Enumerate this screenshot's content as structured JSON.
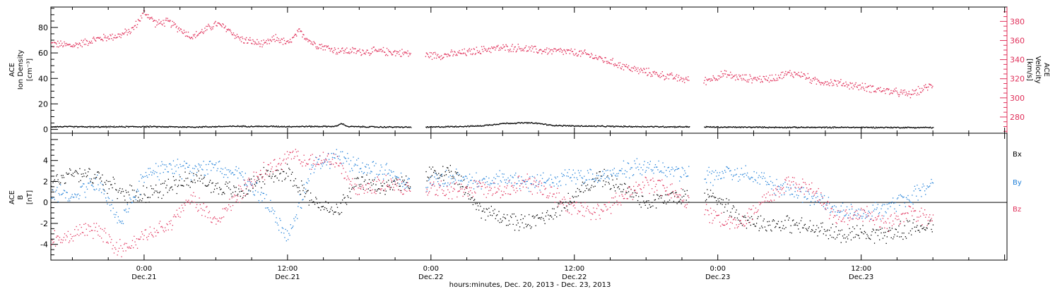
{
  "colors": {
    "black": "#000000",
    "pink": "#e0305a",
    "blue": "#1e7fd8"
  },
  "xaxis": {
    "title": "hours:minutes, Dec. 20, 2013 - Dec. 23, 2013",
    "ticks": [
      {
        "time": "0:00",
        "date": "Dec.21",
        "t": 24
      },
      {
        "time": "12:00",
        "date": "Dec.21",
        "t": 36
      },
      {
        "time": "0:00",
        "date": "Dec.22",
        "t": 48
      },
      {
        "time": "12:00",
        "date": "Dec.22",
        "t": 60
      },
      {
        "time": "0:00",
        "date": "Dec.23",
        "t": 72
      },
      {
        "time": "12:00",
        "date": "Dec.23",
        "t": 84
      }
    ],
    "xlim_hours": [
      16.2,
      96.2
    ]
  },
  "panel1": {
    "left_label": [
      "ACE",
      "Ion Density",
      "[cm⁻³]"
    ],
    "right_label": [
      "ACE",
      "Velocity",
      "[km/s]"
    ],
    "left_ticks": [
      "0",
      "20",
      "40",
      "60",
      "80"
    ],
    "right_ticks": [
      "280",
      "300",
      "320",
      "340",
      "360",
      "380"
    ]
  },
  "panel2": {
    "left_label": [
      "ACE",
      "B",
      "[nT]"
    ],
    "left_ticks": [
      "-4",
      "-2",
      "0",
      "2",
      "4"
    ],
    "legend": [
      {
        "label": "Bx",
        "color": "#000000"
      },
      {
        "label": "By",
        "color": "#1e7fd8"
      },
      {
        "label": "Bz",
        "color": "#e0305a"
      }
    ]
  },
  "chart_data": [
    {
      "type": "scatter",
      "title": "",
      "xlabel": "hours:minutes, Dec. 20, 2013 - Dec. 23, 2013",
      "x_unit": "hours since 2013-12-20 00:00",
      "series": [
        {
          "name": "Ion Density",
          "axis": "left",
          "ylabel": "Ion Density [cm-3]",
          "ylim": [
            -3,
            96
          ],
          "color": "#000000",
          "x": [
            16.2,
            20,
            24,
            28,
            32,
            36,
            40,
            40.5,
            41,
            42,
            44,
            47.5,
            49,
            52,
            54,
            56,
            57,
            58,
            60,
            64,
            68,
            70.8,
            72,
            76,
            80,
            84,
            88,
            90
          ],
          "y": [
            2.5,
            2.3,
            2.5,
            2.2,
            2.8,
            2.6,
            2.7,
            5,
            2.6,
            2.4,
            2.2,
            2.0,
            2.4,
            3.0,
            5.0,
            5.5,
            5.0,
            3.6,
            3.0,
            2.6,
            2.4,
            2.3,
            2.1,
            2.0,
            1.9,
            1.9,
            1.8,
            1.8
          ]
        },
        {
          "name": "Velocity",
          "axis": "right",
          "ylabel": "Velocity [km/s]",
          "ylim": [
            263,
            395
          ],
          "color": "#e0305a",
          "x": [
            16.2,
            18,
            20,
            22,
            23,
            24,
            25,
            26,
            28,
            30,
            31,
            32,
            34,
            35,
            36,
            37,
            38,
            40,
            42,
            44,
            46,
            47.5,
            49,
            51,
            53,
            55,
            57,
            59,
            61,
            63,
            65,
            67,
            69,
            70.8,
            72.5,
            74,
            76,
            78,
            79,
            80,
            82,
            84,
            86,
            88,
            90
          ],
          "y": [
            357,
            355,
            362,
            366,
            372,
            390,
            378,
            380,
            364,
            378,
            372,
            362,
            356,
            363,
            357,
            370,
            358,
            350,
            349,
            349,
            347,
            345,
            345,
            348,
            352,
            353,
            350,
            349,
            346,
            338,
            330,
            325,
            320,
            318,
            325,
            321,
            320,
            326,
            325,
            318,
            316,
            312,
            308,
            304,
            314
          ]
        }
      ]
    },
    {
      "type": "scatter",
      "title": "",
      "xlabel": "hours:minutes, Dec. 20, 2013 - Dec. 23, 2013",
      "x_unit": "hours since 2013-12-20 00:00",
      "ylabel": "B [nT]",
      "ylim": [
        -5.5,
        6.6
      ],
      "series": [
        {
          "name": "Bx",
          "color": "#000000",
          "x": [
            16.2,
            18,
            20,
            22,
            24,
            26,
            28,
            30,
            32,
            34,
            36,
            38,
            40,
            42,
            44,
            46,
            47.5,
            48,
            50,
            52,
            54,
            56,
            58,
            60,
            62,
            64,
            66,
            68,
            70.8,
            72,
            74,
            76,
            78,
            80,
            82,
            84,
            86,
            88,
            90
          ],
          "y": [
            1.8,
            3.0,
            2.5,
            1.0,
            0.8,
            1.5,
            2.5,
            1.5,
            1.0,
            2.5,
            3.0,
            0.2,
            -1.0,
            2.0,
            1.5,
            1.8,
            2.2,
            3.0,
            2.5,
            -0.5,
            -1.5,
            -2.0,
            -1.0,
            0.5,
            2.5,
            1.5,
            0.0,
            0.5,
            0.8,
            0.5,
            -1.5,
            -2.0,
            -2.0,
            -2.5,
            -3.0,
            -2.8,
            -3.0,
            -2.5,
            -2.0
          ]
        },
        {
          "name": "By",
          "color": "#1e7fd8",
          "x": [
            16.2,
            18,
            20,
            22,
            24,
            26,
            28,
            30,
            32,
            34,
            36,
            38,
            40,
            42,
            44,
            46,
            47.5,
            48,
            50,
            52,
            54,
            56,
            58,
            60,
            62,
            64,
            66,
            68,
            70.8,
            72,
            74,
            76,
            78,
            80,
            82,
            84,
            86,
            88,
            90
          ],
          "y": [
            1.0,
            0.5,
            2.0,
            -2.0,
            2.5,
            3.5,
            3.0,
            3.5,
            2.5,
            0.5,
            -3.5,
            3.5,
            4.5,
            3.5,
            3.0,
            2.0,
            1.5,
            2.0,
            2.5,
            2.0,
            2.5,
            2.0,
            2.0,
            2.5,
            2.5,
            3.0,
            3.5,
            3.0,
            2.8,
            2.5,
            3.0,
            2.0,
            1.0,
            0.5,
            -0.5,
            -1.0,
            -0.5,
            0.5,
            2.0
          ]
        },
        {
          "name": "Bz",
          "color": "#e0305a",
          "x": [
            16.2,
            18,
            20,
            22,
            24,
            26,
            28,
            30,
            32,
            34,
            36,
            38,
            40,
            42,
            44,
            46,
            47.5,
            48,
            50,
            52,
            54,
            56,
            58,
            60,
            62,
            64,
            66,
            68,
            70.8,
            72,
            74,
            76,
            78,
            80,
            82,
            84,
            86,
            88,
            90
          ],
          "y": [
            -3.5,
            -3.0,
            -2.5,
            -4.5,
            -3.0,
            -2.0,
            0.5,
            -2.0,
            1.0,
            3.0,
            4.5,
            4.0,
            4.0,
            1.0,
            2.0,
            1.5,
            1.0,
            1.5,
            1.0,
            1.5,
            1.0,
            2.0,
            1.0,
            -0.5,
            -1.0,
            0.5,
            2.0,
            1.0,
            -0.8,
            -1.5,
            -2.0,
            0.5,
            2.0,
            1.0,
            -1.5,
            -1.0,
            -2.0,
            -1.0,
            -1.5
          ]
        }
      ]
    }
  ]
}
